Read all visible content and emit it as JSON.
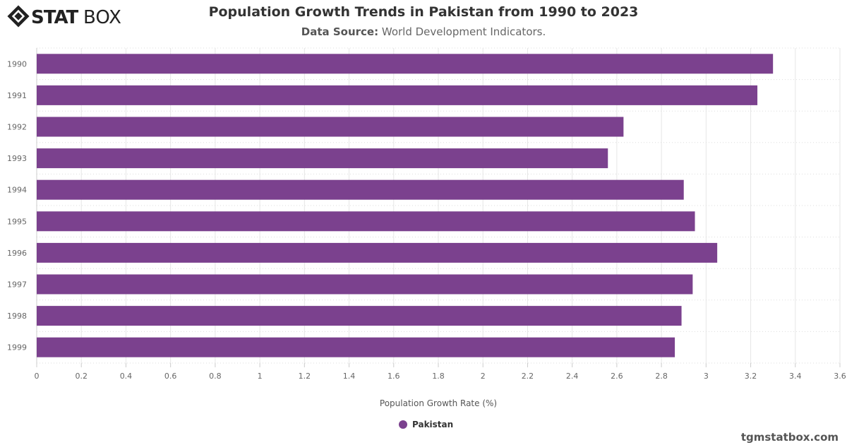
{
  "logo": {
    "text": "STATBOX",
    "bold_part": "STAT",
    "light_part": "BOX"
  },
  "header": {
    "title": "Population Growth Trends in Pakistan from 1990 to 2023",
    "source_label": "Data Source:",
    "source_value": "World Development Indicators."
  },
  "footer": {
    "credit": "tgmstatbox.com"
  },
  "chart_data": {
    "type": "bar",
    "orientation": "horizontal",
    "title": "Population Growth Trends in Pakistan from 1990 to 2023",
    "xlabel": "Population Growth Rate (%)",
    "ylabel": "",
    "xlim": [
      0,
      3.6
    ],
    "xticks": [
      "0",
      "0.2",
      "0.4",
      "0.6",
      "0.8",
      "1",
      "1.2",
      "1.4",
      "1.6",
      "1.8",
      "2",
      "2.2",
      "2.4",
      "2.6",
      "2.8",
      "3",
      "3.2",
      "3.4",
      "3.6"
    ],
    "categories": [
      "1990",
      "1991",
      "1992",
      "1993",
      "1994",
      "1995",
      "1996",
      "1997",
      "1998",
      "1999"
    ],
    "series": [
      {
        "name": "Pakistan",
        "color": "#7b418e",
        "values": [
          3.3,
          3.23,
          2.63,
          2.56,
          2.9,
          2.95,
          3.05,
          2.94,
          2.89,
          2.86
        ]
      }
    ],
    "grid": true,
    "legend": "bottom-center"
  }
}
